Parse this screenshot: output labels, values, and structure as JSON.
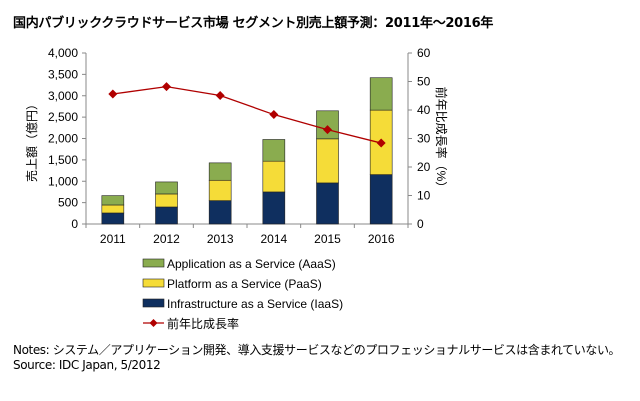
{
  "chart_data": {
    "type": "bar",
    "stacked": true,
    "title": "国内パブリッククラウドサービス市場 セグメント別売上額予測：2011年～2016年",
    "ylabel": "売上額（億円）",
    "y2label": "前年比成長率（%）",
    "categories": [
      "2011",
      "2012",
      "2013",
      "2014",
      "2015",
      "2016"
    ],
    "ylim": [
      0,
      4000
    ],
    "yticks": [
      "0",
      "500",
      "1,000",
      "1,500",
      "2,000",
      "2,500",
      "3,000",
      "3,500",
      "4,000"
    ],
    "y2lim": [
      0,
      60
    ],
    "y2ticks": [
      "0",
      "10",
      "20",
      "30",
      "40",
      "50",
      "60"
    ],
    "grid": false,
    "legend_placement": "bottom",
    "series": [
      {
        "name": "Infrastructure as a Service (IaaS)",
        "type": "bar",
        "color": "#0f2f5f",
        "values": [
          258,
          398,
          547,
          750,
          961,
          1156
        ]
      },
      {
        "name": "Platform as a Service (PaaS)",
        "type": "bar",
        "color": "#f5dc38",
        "values": [
          187,
          305,
          476,
          719,
          1031,
          1508
        ]
      },
      {
        "name": "Application as a Service (AaaS)",
        "type": "bar",
        "color": "#8aac4f",
        "values": [
          219,
          281,
          407,
          508,
          656,
          758
        ]
      },
      {
        "name": "前年比成長率",
        "type": "line",
        "axis": "right",
        "color": "#b00000",
        "values": [
          45.6,
          48.2,
          45.1,
          38.4,
          33.1,
          28.4
        ]
      }
    ],
    "legend_order": [
      "Application as a Service (AaaS)",
      "Platform as a Service (PaaS)",
      "Infrastructure as a Service (IaaS)",
      "前年比成長率"
    ]
  },
  "notes": "Notes: システム／アプリケーション開発、導入支援サービスなどのプロフェッショナルサービスは含まれていない。",
  "source": "Source: IDC Japan, 5/2012"
}
